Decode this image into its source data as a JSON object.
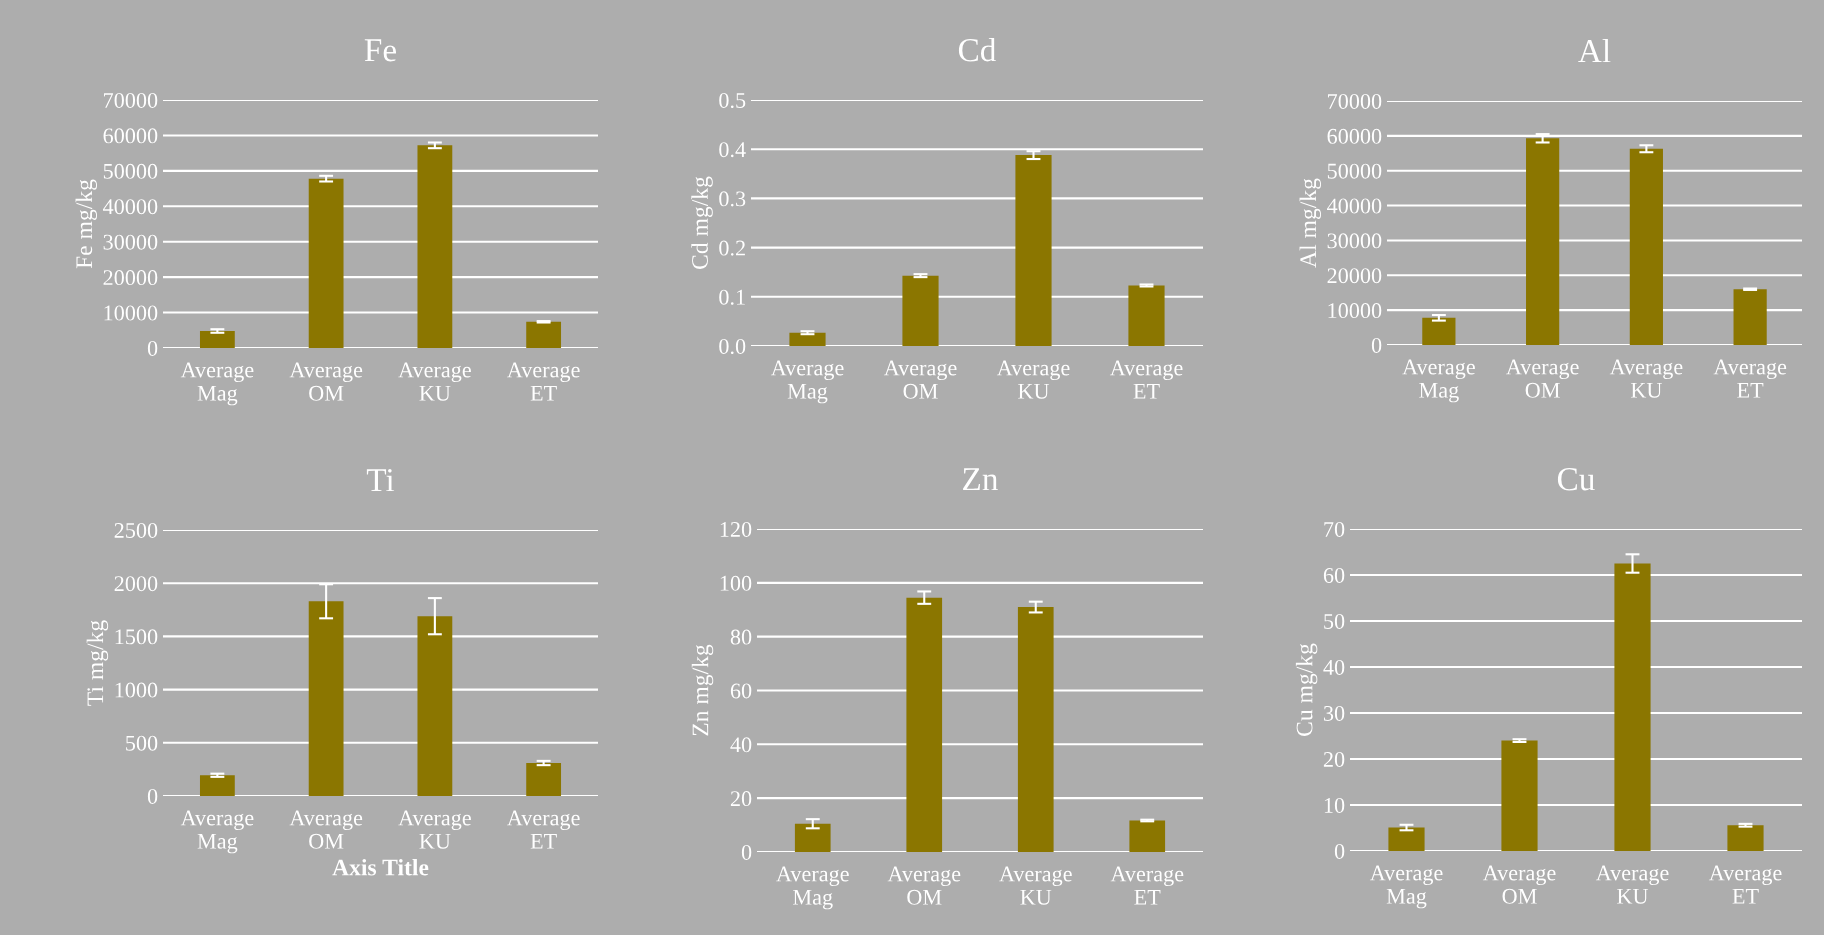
{
  "chart_data": [
    {
      "type": "bar",
      "title": "Fe",
      "ylabel": "Fe mg/kg",
      "categories": [
        "Average Mag",
        "Average OM",
        "Average KU",
        "Average ET"
      ],
      "values": [
        4800,
        47800,
        57200,
        7400
      ],
      "errors": [
        500,
        800,
        800,
        200
      ],
      "color": "#8b7600",
      "ylim": [
        0,
        70000
      ],
      "yticks": [
        0,
        10000,
        20000,
        30000,
        40000,
        50000,
        60000,
        70000
      ],
      "grid": "y",
      "legend": false
    },
    {
      "type": "bar",
      "title": "Cd",
      "ylabel": "Cd mg/kg",
      "categories": [
        "Average Mag",
        "Average OM",
        "Average KU",
        "Average ET"
      ],
      "values": [
        0.027,
        0.143,
        0.388,
        0.123
      ],
      "errors": [
        0.003,
        0.003,
        0.008,
        0.002
      ],
      "color": "#8b7600",
      "ylim": [
        0,
        0.5
      ],
      "yticks": [
        {
          "value": 0,
          "label": "0.0"
        },
        0.1,
        0.2,
        0.3,
        0.4,
        0.5
      ],
      "grid": "y",
      "legend": false
    },
    {
      "type": "bar",
      "title": "Al",
      "ylabel": "Al mg/kg",
      "categories": [
        "Average Mag",
        "Average OM",
        "Average KU",
        "Average ET"
      ],
      "values": [
        7800,
        59300,
        56300,
        16000
      ],
      "errors": [
        800,
        1200,
        1000,
        200
      ],
      "color": "#8b7600",
      "ylim": [
        0,
        70000
      ],
      "yticks": [
        0,
        10000,
        20000,
        30000,
        40000,
        50000,
        60000,
        70000
      ],
      "grid": "y",
      "legend": false
    },
    {
      "type": "bar",
      "title": "Ti",
      "ylabel": "Ti mg/kg",
      "xlabel": "Axis Title",
      "categories": [
        "Average Mag",
        "Average OM",
        "Average KU",
        "Average ET"
      ],
      "values": [
        195,
        1830,
        1690,
        310
      ],
      "errors": [
        15,
        160,
        170,
        20
      ],
      "color": "#8b7600",
      "ylim": [
        0,
        2500
      ],
      "yticks": [
        0,
        500,
        1000,
        1500,
        2000,
        2500
      ],
      "grid": "y",
      "legend": false
    },
    {
      "type": "bar",
      "title": "Zn",
      "ylabel": "Zn mg/kg",
      "categories": [
        "Average Mag",
        "Average OM",
        "Average KU",
        "Average ET"
      ],
      "values": [
        10.5,
        94.5,
        91,
        11.7
      ],
      "errors": [
        1.7,
        2.3,
        2,
        0.3
      ],
      "color": "#8b7600",
      "ylim": [
        0,
        120
      ],
      "yticks": [
        0,
        20,
        40,
        60,
        80,
        100,
        120
      ],
      "grid": "y",
      "legend": false
    },
    {
      "type": "bar",
      "title": "Cu",
      "ylabel": "Cu mg/kg",
      "categories": [
        "Average Mag",
        "Average OM",
        "Average KU",
        "Average ET"
      ],
      "values": [
        5.1,
        24,
        62.5,
        5.6
      ],
      "errors": [
        0.6,
        0.3,
        2,
        0.3
      ],
      "color": "#8b7600",
      "ylim": [
        0,
        70
      ],
      "yticks": [
        0,
        10,
        20,
        30,
        40,
        50,
        60,
        70
      ],
      "grid": "y",
      "legend": false
    }
  ]
}
